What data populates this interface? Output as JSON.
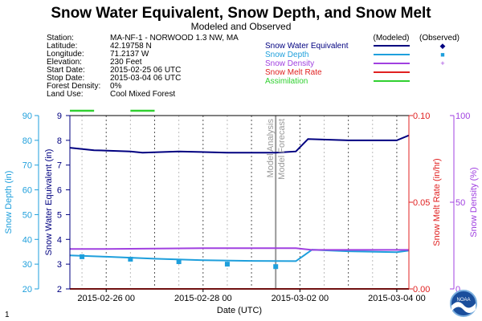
{
  "header": {
    "title": "Snow Water Equivalent, Snow Depth, and Snow Melt",
    "subtitle": "Modeled and Observed",
    "info": [
      {
        "label": "Station:",
        "value": "MA-NF-1 - NORWOOD 1.3 NW, MA"
      },
      {
        "label": "Latitude:",
        "value": "42.19758 N"
      },
      {
        "label": "Longitude:",
        "value": "71.2137 W"
      },
      {
        "label": "Elevation:",
        "value": "230 Feet"
      },
      {
        "label": "Start Date:",
        "value": "2015-02-25 06 UTC"
      },
      {
        "label": "Stop Date:",
        "value": "2015-03-04 06 UTC"
      },
      {
        "label": "Forest Density:",
        "value": "0%"
      },
      {
        "label": "Land Use:",
        "value": "Cool Mixed Forest"
      }
    ]
  },
  "legend": {
    "modeled_header": "(Modeled)",
    "observed_header": "(Observed)",
    "items": [
      {
        "name": "Snow Water Equivalent",
        "color": "#000080",
        "modeled": true,
        "observed": "◆"
      },
      {
        "name": "Snow Depth",
        "color": "#1e9fdc",
        "modeled": true,
        "observed": "■"
      },
      {
        "name": "Snow Density",
        "color": "#a040e0",
        "modeled": true,
        "observed": "+"
      },
      {
        "name": "Snow Melt Rate",
        "color": "#e02020",
        "modeled": true,
        "observed": ""
      },
      {
        "name": "Assimilation",
        "color": "#30d030",
        "modeled": true,
        "observed": ""
      }
    ]
  },
  "page_number": "1",
  "logo_text": "NOAA",
  "chart_data": {
    "type": "line",
    "xlabel": "Date (UTC)",
    "x_ticks": [
      "2015-02-26 00",
      "2015-02-28 00",
      "2015-03-02 00",
      "2015-03-04 00"
    ],
    "x_range": [
      "2015-02-25 06",
      "2015-03-04 06"
    ],
    "annotations": [
      "Model Analysis",
      "Model Forecast"
    ],
    "analysis_time": "2015-03-01 12",
    "axes": {
      "swe": {
        "label": "Snow Water Equivalent (in)",
        "range": [
          2,
          9
        ],
        "ticks": [
          "2",
          "3",
          "4",
          "5",
          "6",
          "7",
          "8",
          "9"
        ],
        "color": "#000080"
      },
      "depth": {
        "label": "Snow Depth (in)",
        "range": [
          20,
          90
        ],
        "ticks": [
          "20",
          "30",
          "40",
          "50",
          "60",
          "70",
          "80",
          "90"
        ],
        "color": "#1e9fdc"
      },
      "melt": {
        "label": "Snow Melt Rate (in/hr)",
        "range": [
          0,
          0.1
        ],
        "ticks": [
          "0.00",
          "0.05",
          "0.10"
        ],
        "color": "#e02020"
      },
      "density": {
        "label": "Snow Density (%)",
        "range": [
          0,
          100
        ],
        "ticks": [
          "0",
          "50",
          "100"
        ],
        "color": "#a040e0"
      }
    },
    "series": [
      {
        "name": "Snow Water Equivalent",
        "axis": "swe",
        "color": "#000080",
        "points": [
          [
            "2015-02-25 06",
            7.7
          ],
          [
            "2015-02-25 18",
            7.6
          ],
          [
            "2015-02-26 12",
            7.55
          ],
          [
            "2015-02-26 18",
            7.5
          ],
          [
            "2015-02-27 12",
            7.55
          ],
          [
            "2015-02-28 12",
            7.5
          ],
          [
            "2015-03-01 00",
            7.5
          ],
          [
            "2015-03-01 12",
            7.5
          ],
          [
            "2015-03-01 22",
            7.55
          ],
          [
            "2015-03-02 04",
            8.05
          ],
          [
            "2015-03-03 00",
            8.0
          ],
          [
            "2015-03-04 00",
            8.0
          ],
          [
            "2015-03-04 06",
            8.2
          ]
        ]
      },
      {
        "name": "Snow Depth",
        "axis": "depth",
        "color": "#1e9fdc",
        "points": [
          [
            "2015-02-25 06",
            33.5
          ],
          [
            "2015-02-26 00",
            33
          ],
          [
            "2015-02-27 00",
            32.2
          ],
          [
            "2015-02-28 00",
            31.6
          ],
          [
            "2015-03-01 00",
            31.3
          ],
          [
            "2015-03-01 22",
            31.2
          ],
          [
            "2015-03-02 06",
            35.8
          ],
          [
            "2015-03-03 00",
            35.2
          ],
          [
            "2015-03-04 00",
            34.8
          ],
          [
            "2015-03-04 06",
            35.5
          ]
        ]
      },
      {
        "name": "Snow Density",
        "axis": "density",
        "color": "#a040e0",
        "points": [
          [
            "2015-02-25 06",
            23
          ],
          [
            "2015-02-26 00",
            23
          ],
          [
            "2015-02-28 00",
            23.5
          ],
          [
            "2015-03-01 22",
            23.5
          ],
          [
            "2015-03-02 06",
            22.5
          ],
          [
            "2015-03-04 06",
            22.5
          ]
        ]
      },
      {
        "name": "Snow Melt Rate",
        "axis": "melt",
        "color": "#e02020",
        "points": [
          [
            "2015-02-25 06",
            0
          ],
          [
            "2015-03-04 06",
            0
          ]
        ]
      }
    ],
    "observed": [
      {
        "name": "Snow Depth",
        "axis": "depth",
        "color": "#1e9fdc",
        "marker": "square",
        "points": [
          [
            "2015-02-25 12",
            33
          ],
          [
            "2015-02-26 12",
            32
          ],
          [
            "2015-02-27 12",
            31
          ],
          [
            "2015-02-28 12",
            30
          ],
          [
            "2015-03-01 12",
            29
          ]
        ]
      }
    ],
    "assimilation": [
      [
        "2015-02-25 06",
        "2015-02-25 18"
      ],
      [
        "2015-02-26 12",
        "2015-02-27 00"
      ]
    ]
  }
}
